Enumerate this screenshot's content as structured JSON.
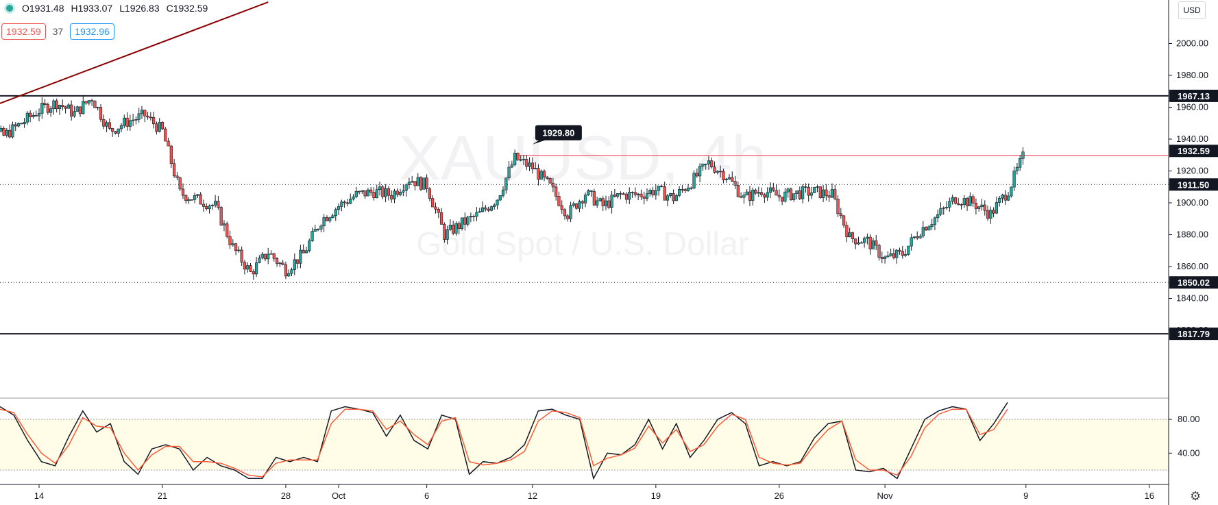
{
  "header": {
    "ohlc": {
      "open": "O1931.48",
      "high": "H1933.07",
      "low": "L1926.83",
      "close": "C1932.59"
    },
    "bid": "1932.59",
    "spread": "37",
    "ask": "1932.96"
  },
  "currency_button": "USD",
  "watermark": {
    "symbol": "XAUUSD, 4h",
    "description": "Gold Spot / U.S. Dollar"
  },
  "icons": {
    "status": "status-dot-icon",
    "settings": "gear-icon"
  },
  "colors": {
    "up": "#26a69a",
    "down": "#ef5350",
    "trendline": "#8b0000",
    "resistance": "#f23645",
    "stoch_k": "#131722",
    "stoch_d": "#ff5a36",
    "stoch_band": "#fffde7"
  },
  "chart_data": [
    {
      "type": "candlestick",
      "symbol": "XAUUSD",
      "timeframe": "4h",
      "ylim": [
        1812,
        2016
      ],
      "y_ticks": [
        "2000.00",
        "1980.00",
        "1960.00",
        "1940.00",
        "1920.00",
        "1900.00",
        "1880.00",
        "1860.00",
        "1840.00",
        "1820.00"
      ],
      "x_ticks": [
        "14",
        "21",
        "28",
        "Oct",
        "6",
        "12",
        "19",
        "26",
        "Nov",
        "9",
        "16"
      ],
      "horizontal_lines": [
        {
          "value": 1967.13,
          "label": "1967.13",
          "style": "solid"
        },
        {
          "value": 1911.5,
          "label": "1911.50",
          "style": "dotted"
        },
        {
          "value": 1850.02,
          "label": "1850.02",
          "style": "dotted"
        },
        {
          "value": 1817.79,
          "label": "1817.79",
          "style": "solid"
        },
        {
          "value": 1929.8,
          "label": "1929.80",
          "style": "red",
          "from": "Oct 11"
        }
      ],
      "last_price": "1932.59",
      "trendline": {
        "from": {
          "date": "Sep 10",
          "value": 1955
        },
        "to": {
          "date": "Sep 27",
          "value": 2026
        }
      },
      "close_path": [
        [
          "Sep 10",
          1955
        ],
        [
          "Sep 11",
          1947
        ],
        [
          "Sep 12",
          1942
        ],
        [
          "Sep 13",
          1950
        ],
        [
          "Sep 14",
          1958
        ],
        [
          "Sep 15",
          1963
        ],
        [
          "Sep 16",
          1956
        ],
        [
          "Sep 17",
          1966
        ],
        [
          "Sep 18",
          1945
        ],
        [
          "Sep 19",
          1951
        ],
        [
          "Sep 20",
          1955
        ],
        [
          "Sep 21",
          1945
        ],
        [
          "Sep 22",
          1906
        ],
        [
          "Sep 23",
          1902
        ],
        [
          "Sep 24",
          1898
        ],
        [
          "Sep 25",
          1872
        ],
        [
          "Sep 26",
          1856
        ],
        [
          "Sep 27",
          1869
        ],
        [
          "Sep 28",
          1858
        ],
        [
          "Sep 29",
          1868
        ],
        [
          "Sep 30",
          1889
        ],
        [
          "Oct 1",
          1898
        ],
        [
          "Oct 2",
          1905
        ],
        [
          "Oct 3",
          1907
        ],
        [
          "Oct 4",
          1905
        ],
        [
          "Oct 5",
          1915
        ],
        [
          "Oct 6",
          1911
        ],
        [
          "Oct 7",
          1880
        ],
        [
          "Oct 8",
          1887
        ],
        [
          "Oct 9",
          1893
        ],
        [
          "Oct 10",
          1903
        ],
        [
          "Oct 11",
          1928
        ],
        [
          "Oct 12",
          1922
        ],
        [
          "Oct 13",
          1910
        ],
        [
          "Oct 14",
          1893
        ],
        [
          "Oct 15",
          1906
        ],
        [
          "Oct 16",
          1898
        ],
        [
          "Oct 17",
          1905
        ],
        [
          "Oct 18",
          1905
        ],
        [
          "Oct 19",
          1908
        ],
        [
          "Oct 20",
          1903
        ],
        [
          "Oct 21",
          1913
        ],
        [
          "Oct 22",
          1925
        ],
        [
          "Oct 23",
          1917
        ],
        [
          "Oct 24",
          1903
        ],
        [
          "Oct 25",
          1908
        ],
        [
          "Oct 26",
          1904
        ],
        [
          "Oct 27",
          1906
        ],
        [
          "Oct 28",
          1907
        ],
        [
          "Oct 29",
          1905
        ],
        [
          "Oct 30",
          1878
        ],
        [
          "Oct 31",
          1876
        ],
        [
          "Nov 1",
          1865
        ],
        [
          "Nov 2",
          1868
        ],
        [
          "Nov 3",
          1883
        ],
        [
          "Nov 4",
          1892
        ],
        [
          "Nov 5",
          1903
        ],
        [
          "Nov 6",
          1900
        ],
        [
          "Nov 7",
          1893
        ],
        [
          "Nov 8",
          1908
        ],
        [
          "Nov 9",
          1932.59
        ]
      ]
    },
    {
      "type": "line",
      "indicator": "Stochastic",
      "ylim": [
        0,
        105
      ],
      "y_ticks": [
        "80.00",
        "40.00"
      ],
      "band": [
        20,
        80
      ],
      "series": [
        {
          "role": "k",
          "values": [
            95,
            85,
            55,
            30,
            25,
            60,
            90,
            65,
            75,
            30,
            15,
            45,
            50,
            45,
            20,
            35,
            25,
            20,
            10,
            10,
            35,
            30,
            35,
            30,
            90,
            95,
            92,
            88,
            60,
            85,
            55,
            45,
            85,
            80,
            15,
            30,
            28,
            35,
            50,
            90,
            92,
            85,
            80,
            10,
            40,
            38,
            50,
            80,
            45,
            75,
            35,
            55,
            80,
            88,
            75,
            25,
            30,
            25,
            30,
            58,
            75,
            78,
            20,
            18,
            22,
            10,
            45,
            80,
            90,
            95,
            92,
            55,
            75,
            100
          ]
        },
        {
          "role": "d",
          "values": [
            92,
            88,
            62,
            40,
            28,
            50,
            82,
            72,
            70,
            40,
            20,
            38,
            48,
            48,
            30,
            30,
            28,
            22,
            14,
            12,
            28,
            32,
            32,
            32,
            75,
            92,
            92,
            90,
            68,
            78,
            62,
            50,
            78,
            82,
            30,
            26,
            28,
            32,
            42,
            78,
            90,
            88,
            82,
            25,
            34,
            38,
            46,
            72,
            52,
            68,
            42,
            50,
            72,
            86,
            80,
            35,
            28,
            26,
            28,
            50,
            68,
            78,
            32,
            20,
            20,
            14,
            36,
            70,
            86,
            92,
            92,
            62,
            68,
            92
          ]
        }
      ]
    }
  ]
}
